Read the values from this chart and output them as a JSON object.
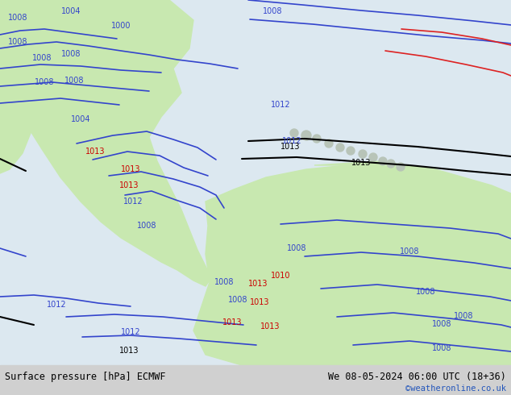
{
  "title_left": "Surface pressure [hPa] ECMWF",
  "title_right": "We 08-05-2024 06:00 UTC (18+36)",
  "credit": "©weatheronline.co.uk",
  "bg_gray": "#d4d4d4",
  "ocean_color": "#dce8f0",
  "land_color": "#c8e8b0",
  "bottom_bar_color": "#d0d0d0",
  "blue": "#3344cc",
  "black": "#000000",
  "red": "#dd2222",
  "dark_red": "#cc0000",
  "figsize": [
    6.34,
    4.9
  ],
  "dpi": 100
}
